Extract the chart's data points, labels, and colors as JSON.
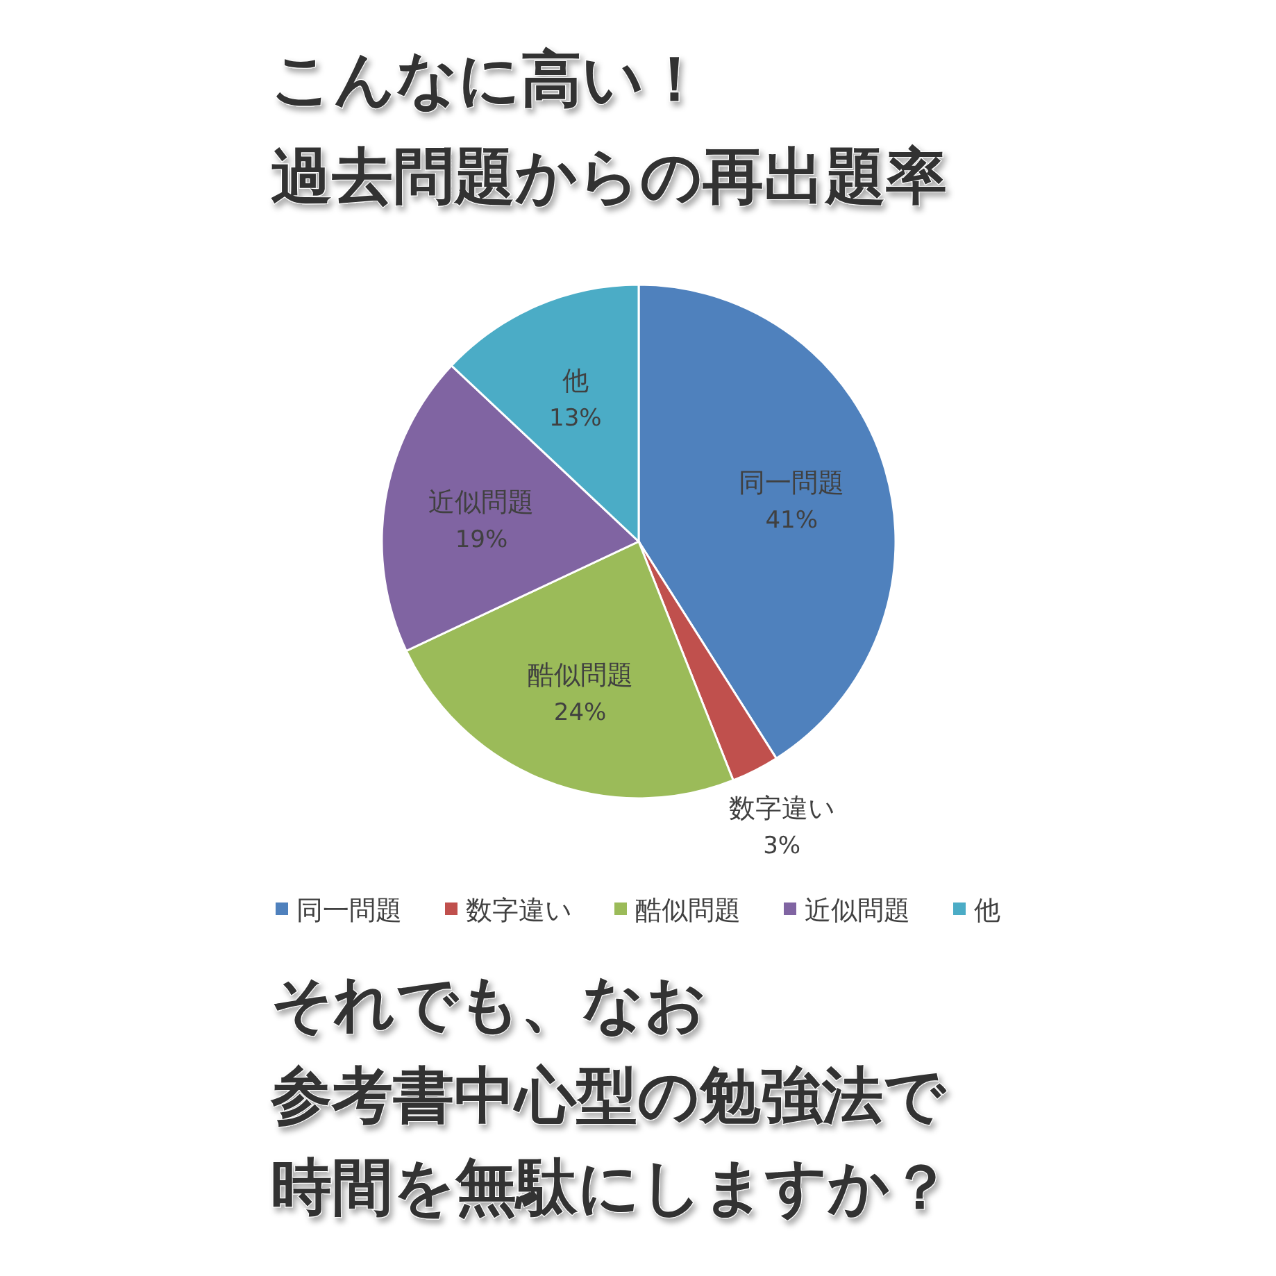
{
  "chart_data": {
    "type": "pie",
    "title": "こんなに高い！",
    "subtitle": "過去問題からの再出題率",
    "categories": [
      "同一問題",
      "数字違い",
      "酷似問題",
      "近似問題",
      "他"
    ],
    "values": [
      41,
      3,
      24,
      19,
      13
    ],
    "colors": [
      "#4f81bd",
      "#c0504d",
      "#9bbb59",
      "#8064a2",
      "#4bacc6"
    ],
    "value_labels": [
      "41%",
      "3%",
      "24%",
      "19%",
      "13%"
    ],
    "legend": "bottom",
    "annotations": [
      "それでも、なお",
      "参考書中心型の勉強法で",
      "時間を無駄にしますか？"
    ]
  }
}
